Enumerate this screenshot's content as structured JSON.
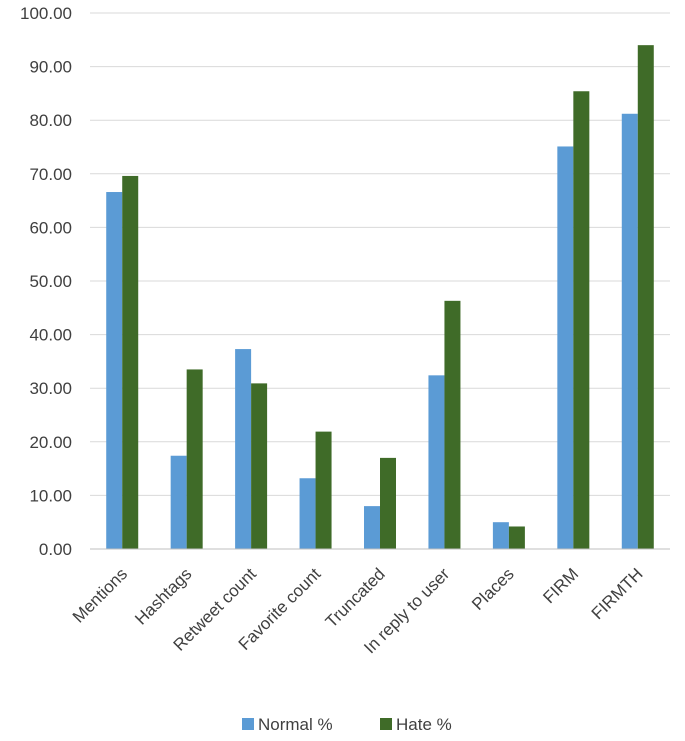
{
  "chart_data": {
    "type": "bar",
    "title": "",
    "xlabel": "",
    "ylabel": "",
    "ylim": [
      0,
      100
    ],
    "y_tick_step": 10,
    "y_tick_labels": [
      "0.00",
      "10.00",
      "20.00",
      "30.00",
      "40.00",
      "50.00",
      "60.00",
      "70.00",
      "80.00",
      "90.00",
      "100.00"
    ],
    "grid": true,
    "legend_position": "bottom",
    "categories": [
      "Mentions",
      "Hashtags",
      "Retweet count",
      "Favorite count",
      "Truncated",
      "In reply to user",
      "Places",
      "FIRM",
      "FIRMTH"
    ],
    "series": [
      {
        "name": "Normal %",
        "color": "#5b9bd5",
        "values": [
          66.6,
          17.4,
          37.3,
          13.2,
          8.0,
          32.4,
          5.0,
          75.1,
          81.2
        ]
      },
      {
        "name": "Hate %",
        "color": "#3f6b28",
        "values": [
          69.6,
          33.5,
          30.9,
          21.9,
          17.0,
          46.3,
          4.2,
          85.4,
          94.0
        ]
      }
    ]
  }
}
